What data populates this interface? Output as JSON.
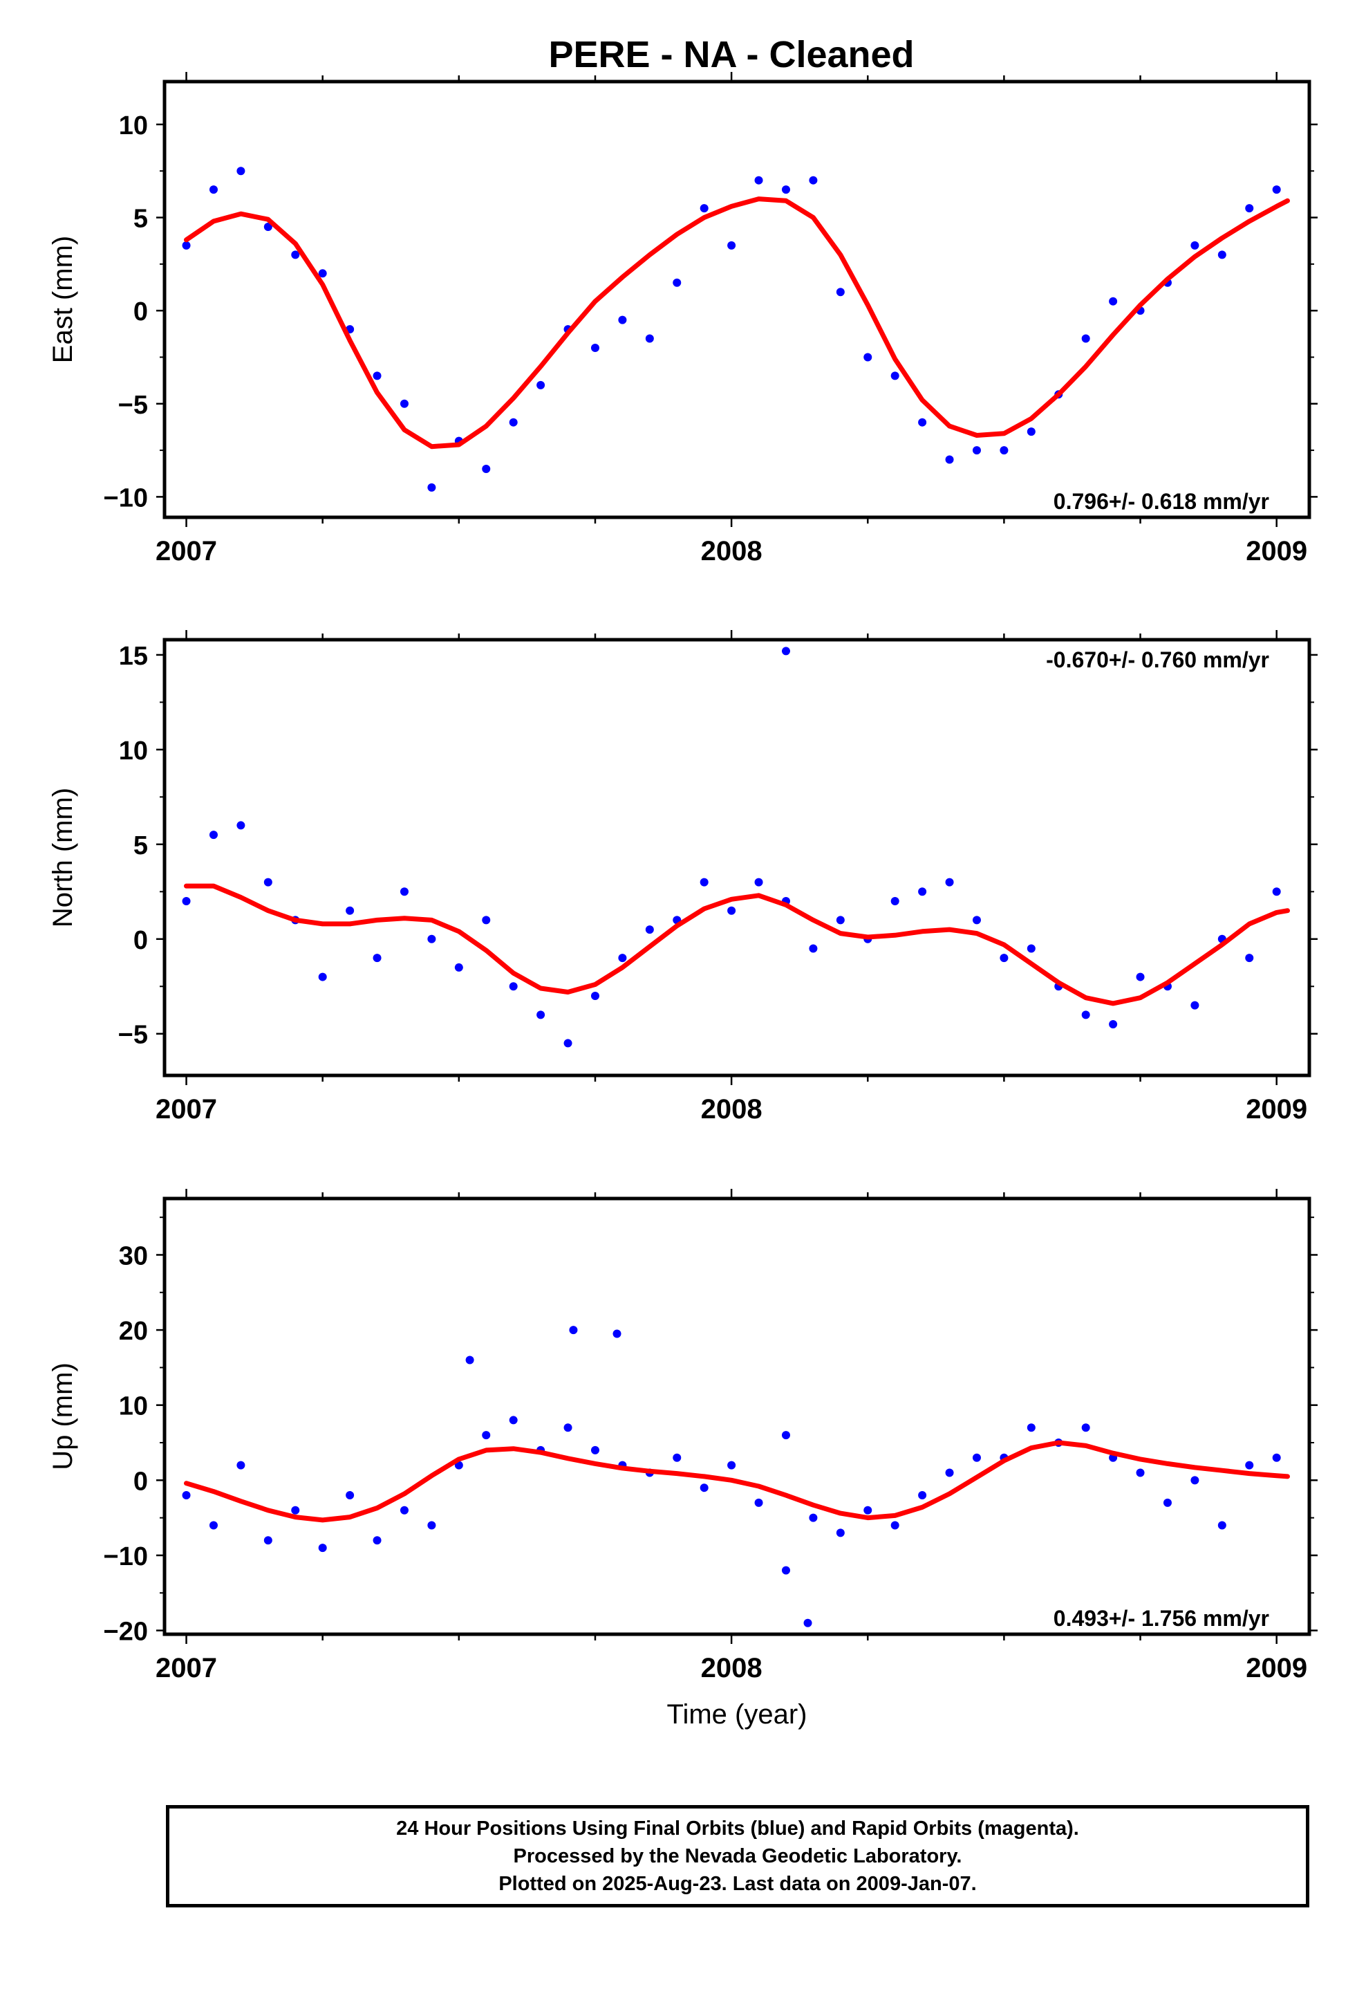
{
  "chart_data": {
    "title": "PERE  - NA - Cleaned",
    "type": "scatter",
    "xlabel": "Time (year)",
    "xlim": [
      2006.96,
      2009.06
    ],
    "x_ticks": [
      2007,
      2008,
      2009
    ],
    "colors": {
      "points": "#0000ff",
      "fit": "#ff0000",
      "frame": "#000000"
    },
    "panels": [
      {
        "ylabel": "East (mm)",
        "ylim": [
          -11.1,
          12.3
        ],
        "y_ticks": [
          10,
          5,
          0,
          -5,
          -10
        ],
        "rate_label": "0.796+/- 0.618 mm/yr",
        "rate_label_position": "bottom-right",
        "series": [
          {
            "kind": "points",
            "x": [
              2007.0,
              2007.05,
              2007.1,
              2007.15,
              2007.2,
              2007.25,
              2007.3,
              2007.35,
              2007.4,
              2007.45,
              2007.5,
              2007.55,
              2007.6,
              2007.65,
              2007.7,
              2007.75,
              2007.8,
              2007.85,
              2007.9,
              2007.95,
              2008.0,
              2008.05,
              2008.1,
              2008.15,
              2008.2,
              2008.25,
              2008.3,
              2008.35,
              2008.4,
              2008.45,
              2008.5,
              2008.55,
              2008.6,
              2008.65,
              2008.7,
              2008.75,
              2008.8,
              2008.85,
              2008.9,
              2008.95,
              2009.0
            ],
            "y": [
              3.5,
              6.5,
              7.5,
              4.5,
              3.0,
              2.0,
              -1.0,
              -3.5,
              -5.0,
              -9.5,
              -7.0,
              -8.5,
              -6.0,
              -4.0,
              -1.0,
              -2.0,
              -0.5,
              -1.5,
              1.5,
              5.5,
              3.5,
              7.0,
              6.5,
              7.0,
              1.0,
              -2.5,
              -3.5,
              -6.0,
              -8.0,
              -7.5,
              -7.5,
              -6.5,
              -4.5,
              -1.5,
              0.5,
              0.0,
              1.5,
              3.5,
              3.0,
              5.5,
              6.5
            ]
          },
          {
            "kind": "fit",
            "x": [
              2007.0,
              2007.05,
              2007.1,
              2007.15,
              2007.2,
              2007.25,
              2007.3,
              2007.35,
              2007.4,
              2007.45,
              2007.5,
              2007.55,
              2007.6,
              2007.65,
              2007.7,
              2007.75,
              2007.8,
              2007.85,
              2007.9,
              2007.95,
              2008.0,
              2008.05,
              2008.1,
              2008.15,
              2008.2,
              2008.25,
              2008.3,
              2008.35,
              2008.4,
              2008.45,
              2008.5,
              2008.55,
              2008.6,
              2008.65,
              2008.7,
              2008.75,
              2008.8,
              2008.85,
              2008.9,
              2008.95,
              2009.0,
              2009.02
            ],
            "y": [
              3.8,
              4.8,
              5.2,
              4.9,
              3.6,
              1.4,
              -1.6,
              -4.4,
              -6.4,
              -7.3,
              -7.2,
              -6.2,
              -4.7,
              -3.0,
              -1.2,
              0.5,
              1.8,
              3.0,
              4.1,
              5.0,
              5.6,
              6.0,
              5.9,
              5.0,
              3.0,
              0.3,
              -2.6,
              -4.8,
              -6.2,
              -6.7,
              -6.6,
              -5.8,
              -4.5,
              -3.0,
              -1.3,
              0.3,
              1.7,
              2.9,
              3.9,
              4.8,
              5.6,
              5.9
            ]
          }
        ]
      },
      {
        "ylabel": "North (mm)",
        "ylim": [
          -7.2,
          15.8
        ],
        "y_ticks": [
          15,
          10,
          5,
          0,
          -5
        ],
        "rate_label": "-0.670+/- 0.760 mm/yr",
        "rate_label_position": "top-right",
        "series": [
          {
            "kind": "points",
            "x": [
              2007.0,
              2007.05,
              2007.1,
              2007.15,
              2007.2,
              2007.25,
              2007.3,
              2007.35,
              2007.4,
              2007.45,
              2007.5,
              2007.55,
              2007.6,
              2007.65,
              2007.7,
              2007.75,
              2007.8,
              2007.85,
              2007.9,
              2007.95,
              2008.0,
              2008.05,
              2008.1,
              2008.15,
              2008.2,
              2008.25,
              2008.3,
              2008.35,
              2008.4,
              2008.45,
              2008.5,
              2008.55,
              2008.6,
              2008.65,
              2008.7,
              2008.75,
              2008.8,
              2008.85,
              2008.9,
              2008.95,
              2009.0,
              2008.1
            ],
            "y": [
              2.0,
              5.5,
              6.0,
              3.0,
              1.0,
              -2.0,
              1.5,
              -1.0,
              2.5,
              0.0,
              -1.5,
              1.0,
              -2.5,
              -4.0,
              -5.5,
              -3.0,
              -1.0,
              0.5,
              1.0,
              3.0,
              1.5,
              3.0,
              2.0,
              -0.5,
              1.0,
              0.0,
              2.0,
              2.5,
              3.0,
              1.0,
              -1.0,
              -0.5,
              -2.5,
              -4.0,
              -4.5,
              -2.0,
              -2.5,
              -3.5,
              0.0,
              -1.0,
              2.5,
              15.2
            ]
          },
          {
            "kind": "fit",
            "x": [
              2007.0,
              2007.05,
              2007.1,
              2007.15,
              2007.2,
              2007.25,
              2007.3,
              2007.35,
              2007.4,
              2007.45,
              2007.5,
              2007.55,
              2007.6,
              2007.65,
              2007.7,
              2007.75,
              2007.8,
              2007.85,
              2007.9,
              2007.95,
              2008.0,
              2008.05,
              2008.1,
              2008.15,
              2008.2,
              2008.25,
              2008.3,
              2008.35,
              2008.4,
              2008.45,
              2008.5,
              2008.55,
              2008.6,
              2008.65,
              2008.7,
              2008.75,
              2008.8,
              2008.85,
              2008.9,
              2008.95,
              2009.0,
              2009.02
            ],
            "y": [
              2.8,
              2.8,
              2.2,
              1.5,
              1.0,
              0.8,
              0.8,
              1.0,
              1.1,
              1.0,
              0.4,
              -0.6,
              -1.8,
              -2.6,
              -2.8,
              -2.4,
              -1.5,
              -0.4,
              0.7,
              1.6,
              2.1,
              2.3,
              1.8,
              1.0,
              0.3,
              0.1,
              0.2,
              0.4,
              0.5,
              0.3,
              -0.3,
              -1.3,
              -2.3,
              -3.1,
              -3.4,
              -3.1,
              -2.3,
              -1.3,
              -0.3,
              0.8,
              1.4,
              1.5
            ]
          }
        ]
      },
      {
        "ylabel": "Up (mm)",
        "ylim": [
          -20.5,
          37.5
        ],
        "y_ticks": [
          30,
          20,
          10,
          0,
          -10,
          -20
        ],
        "rate_label": "0.493+/- 1.756 mm/yr",
        "rate_label_position": "bottom-right",
        "series": [
          {
            "kind": "points",
            "x": [
              2007.0,
              2007.05,
              2007.1,
              2007.15,
              2007.2,
              2007.25,
              2007.3,
              2007.35,
              2007.4,
              2007.45,
              2007.5,
              2007.55,
              2007.6,
              2007.65,
              2007.7,
              2007.75,
              2007.8,
              2007.85,
              2007.9,
              2007.95,
              2008.0,
              2008.05,
              2008.1,
              2008.15,
              2008.2,
              2008.25,
              2008.3,
              2008.35,
              2008.4,
              2008.45,
              2008.5,
              2008.55,
              2008.6,
              2008.65,
              2008.7,
              2008.75,
              2008.8,
              2008.85,
              2008.9,
              2008.95,
              2009.0,
              2008.1,
              2008.14,
              2007.52,
              2007.71,
              2007.79
            ],
            "y": [
              -2.0,
              -6.0,
              2.0,
              -8.0,
              -4.0,
              -9.0,
              -2.0,
              -8.0,
              -4.0,
              -6.0,
              2.0,
              6.0,
              8.0,
              4.0,
              7.0,
              4.0,
              2.0,
              1.0,
              3.0,
              -1.0,
              2.0,
              -3.0,
              6.0,
              -5.0,
              -7.0,
              -4.0,
              -6.0,
              -2.0,
              1.0,
              3.0,
              3.0,
              7.0,
              5.0,
              7.0,
              3.0,
              1.0,
              -3.0,
              0.0,
              -6.0,
              2.0,
              3.0,
              -12.0,
              -19.0,
              16.0,
              20.0,
              19.5
            ]
          },
          {
            "kind": "fit",
            "x": [
              2007.0,
              2007.05,
              2007.1,
              2007.15,
              2007.2,
              2007.25,
              2007.3,
              2007.35,
              2007.4,
              2007.45,
              2007.5,
              2007.55,
              2007.6,
              2007.65,
              2007.7,
              2007.75,
              2007.8,
              2007.85,
              2007.9,
              2007.95,
              2008.0,
              2008.05,
              2008.1,
              2008.15,
              2008.2,
              2008.25,
              2008.3,
              2008.35,
              2008.4,
              2008.45,
              2008.5,
              2008.55,
              2008.6,
              2008.65,
              2008.7,
              2008.75,
              2008.8,
              2008.85,
              2008.9,
              2008.95,
              2009.0,
              2009.02
            ],
            "y": [
              -0.4,
              -1.5,
              -2.8,
              -4.0,
              -4.9,
              -5.3,
              -4.9,
              -3.7,
              -1.8,
              0.6,
              2.8,
              4.0,
              4.2,
              3.7,
              2.9,
              2.2,
              1.6,
              1.2,
              0.9,
              0.5,
              0.0,
              -0.8,
              -2.0,
              -3.3,
              -4.4,
              -5.0,
              -4.7,
              -3.6,
              -1.8,
              0.4,
              2.6,
              4.3,
              5.0,
              4.6,
              3.6,
              2.8,
              2.2,
              1.7,
              1.3,
              0.9,
              0.6,
              0.5
            ]
          }
        ]
      }
    ],
    "footnote_lines": [
      "24 Hour Positions Using Final Orbits (blue) and Rapid Orbits (magenta).",
      "Processed by the Nevada Geodetic Laboratory.",
      "Plotted on 2025-Aug-23. Last data on 2009-Jan-07."
    ]
  }
}
